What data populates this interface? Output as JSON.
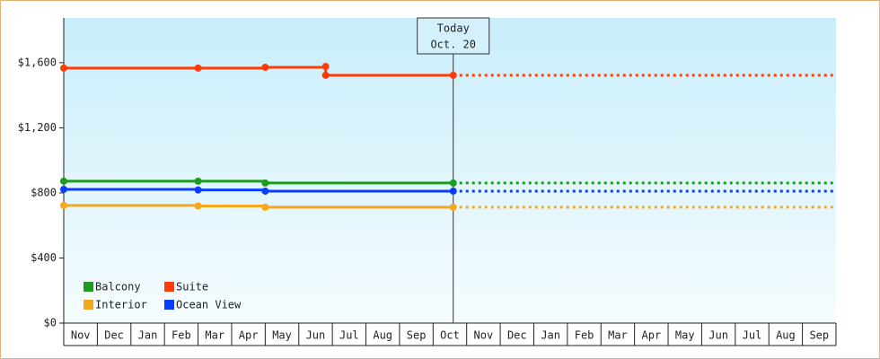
{
  "chart_data": {
    "type": "line",
    "step": true,
    "categories": [
      "Nov",
      "Dec",
      "Jan",
      "Feb",
      "Mar",
      "Apr",
      "May",
      "Jun",
      "Jul",
      "Aug",
      "Sep",
      "Oct",
      "Nov",
      "Dec",
      "Jan",
      "Feb",
      "Mar",
      "Apr",
      "May",
      "Jun",
      "Jul",
      "Aug",
      "Sep"
    ],
    "xlim": [
      0,
      23
    ],
    "ylim": [
      0,
      1875
    ],
    "yticks": [
      {
        "value": 0,
        "label": "$0"
      },
      {
        "value": 400,
        "label": "$400"
      },
      {
        "value": 800,
        "label": "$800"
      },
      {
        "value": 1200,
        "label": "$1,200"
      },
      {
        "value": 1600,
        "label": "$1,600"
      }
    ],
    "annotation": {
      "x": 11.6,
      "lines": [
        "Today",
        "Oct. 20"
      ]
    },
    "projection": "dotted",
    "legend": "lower left",
    "series": [
      {
        "name": "Balcony",
        "color": "#1e9b1e",
        "x": [
          0,
          4,
          6,
          11.6
        ],
        "values": [
          872,
          872,
          861,
          861
        ]
      },
      {
        "name": "Suite",
        "color": "#ff3c0a",
        "x": [
          0,
          4,
          6,
          7.8,
          7.8,
          11.6
        ],
        "values": [
          1567,
          1567,
          1572,
          1577,
          1523,
          1523
        ]
      },
      {
        "name": "Interior",
        "color": "#f5a81c",
        "x": [
          0,
          4,
          6,
          11.6
        ],
        "values": [
          723,
          720,
          712,
          712
        ]
      },
      {
        "name": "Ocean View",
        "color": "#0a3cff",
        "x": [
          0,
          4,
          6,
          11.6
        ],
        "values": [
          822,
          818,
          811,
          811
        ]
      }
    ]
  }
}
